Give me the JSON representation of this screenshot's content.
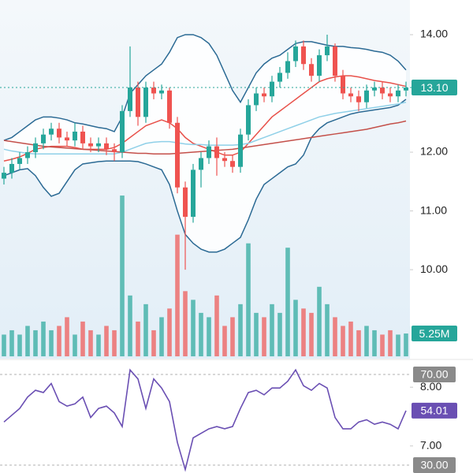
{
  "chart_data": {
    "type": "candlestick",
    "ylim": [
      6.54,
      14.59
    ],
    "yticks": [
      {
        "value": 7,
        "label": "7.00"
      },
      {
        "value": 8,
        "label": "8.00"
      },
      {
        "value": 10,
        "label": "10.00"
      },
      {
        "value": 11,
        "label": "11.00"
      },
      {
        "value": 12,
        "label": "12.00"
      },
      {
        "value": 14,
        "label": "14.00"
      }
    ],
    "grid": false,
    "up_color": "#26a69a",
    "down_color": "#ef5350",
    "open": [
      11.55,
      11.65,
      11.8,
      11.9,
      12.0,
      12.15,
      12.3,
      12.4,
      12.25,
      12.2,
      12.35,
      12.15,
      12.1,
      12.15,
      12.05,
      12.0,
      12.7,
      13.1,
      12.6,
      13.1,
      13.0,
      13.05,
      12.5,
      11.4,
      10.9,
      11.7,
      11.9,
      12.1,
      11.9,
      11.85,
      11.75,
      12.3,
      12.8,
      13.0,
      12.95,
      13.2,
      13.35,
      13.55,
      13.8,
      13.5,
      13.3,
      13.65,
      13.8,
      13.3,
      13.0,
      12.95,
      12.85,
      13.05,
      13.1,
      13.0,
      12.95,
      13.05
    ],
    "high": [
      11.75,
      11.9,
      12.0,
      12.1,
      12.25,
      12.4,
      12.5,
      12.5,
      12.35,
      12.5,
      12.45,
      12.25,
      12.25,
      12.25,
      12.15,
      12.8,
      13.8,
      13.2,
      13.2,
      13.2,
      13.15,
      13.1,
      12.6,
      11.5,
      11.8,
      12.0,
      12.2,
      12.25,
      12.0,
      11.95,
      12.4,
      12.9,
      13.1,
      13.1,
      13.3,
      13.45,
      13.7,
      13.9,
      13.9,
      13.6,
      13.75,
      14.0,
      13.85,
      13.4,
      13.1,
      13.05,
      13.15,
      13.2,
      13.2,
      13.1,
      13.15,
      13.2
    ],
    "low": [
      11.45,
      11.55,
      11.7,
      11.8,
      11.9,
      12.05,
      12.2,
      12.15,
      12.1,
      12.1,
      12.05,
      12.0,
      12.0,
      11.95,
      11.85,
      11.9,
      12.6,
      12.45,
      12.5,
      12.9,
      12.9,
      12.4,
      11.3,
      10.0,
      10.8,
      11.4,
      11.8,
      11.6,
      11.75,
      11.65,
      11.65,
      12.2,
      12.7,
      12.85,
      12.85,
      13.1,
      13.25,
      13.45,
      13.4,
      13.2,
      13.2,
      13.55,
      13.2,
      12.9,
      12.85,
      12.7,
      12.75,
      12.95,
      12.9,
      12.85,
      12.85,
      12.95
    ],
    "close": [
      11.65,
      11.8,
      11.9,
      12.0,
      12.15,
      12.3,
      12.4,
      12.25,
      12.2,
      12.35,
      12.15,
      12.1,
      12.15,
      12.05,
      12.0,
      12.7,
      13.1,
      12.6,
      13.1,
      13.0,
      13.05,
      12.5,
      11.4,
      10.9,
      11.7,
      11.9,
      12.1,
      11.9,
      11.85,
      11.75,
      12.3,
      12.8,
      13.0,
      12.95,
      13.2,
      13.35,
      13.55,
      13.8,
      13.5,
      13.3,
      13.65,
      13.8,
      13.3,
      13.0,
      12.95,
      12.85,
      13.05,
      13.1,
      13.0,
      12.95,
      13.05,
      13.1
    ],
    "close_labels": [
      null,
      null,
      null,
      null,
      null,
      null,
      null,
      null,
      null,
      null,
      null,
      null,
      null,
      null,
      null,
      null,
      null,
      null,
      null,
      null,
      null,
      null,
      null,
      null,
      null,
      null,
      null,
      null,
      null,
      null,
      null,
      null,
      null,
      null,
      null,
      null,
      null,
      null,
      null,
      null,
      null,
      null,
      null,
      null,
      null,
      null,
      null,
      null,
      null,
      null,
      null,
      "13.10"
    ],
    "overlays": [
      {
        "color": "#2b6a94",
        "values": [
          12.2,
          12.25,
          12.35,
          12.45,
          12.55,
          12.6,
          12.6,
          12.58,
          12.55,
          12.5,
          12.48,
          12.45,
          12.42,
          12.4,
          12.35,
          12.6,
          13.0,
          13.15,
          13.3,
          13.4,
          13.5,
          13.7,
          13.95,
          14.0,
          14.0,
          13.95,
          13.85,
          13.65,
          13.35,
          13.05,
          12.85,
          13.1,
          13.35,
          13.5,
          13.6,
          13.65,
          13.75,
          13.85,
          13.88,
          13.88,
          13.85,
          13.82,
          13.8,
          13.8,
          13.78,
          13.77,
          13.75,
          13.72,
          13.7,
          13.65,
          13.55,
          13.4
        ]
      },
      {
        "color": "#2b6a94",
        "values": [
          11.6,
          11.65,
          11.7,
          11.72,
          11.6,
          11.4,
          11.25,
          11.3,
          11.5,
          11.7,
          11.8,
          11.82,
          11.84,
          11.85,
          11.85,
          11.85,
          11.85,
          11.84,
          11.8,
          11.75,
          11.7,
          11.45,
          11.0,
          10.6,
          10.45,
          10.35,
          10.3,
          10.3,
          10.35,
          10.45,
          10.55,
          10.85,
          11.2,
          11.45,
          11.55,
          11.65,
          11.75,
          11.8,
          11.95,
          12.25,
          12.4,
          12.5,
          12.55,
          12.6,
          12.65,
          12.68,
          12.7,
          12.72,
          12.74,
          12.76,
          12.8,
          12.9
        ]
      },
      {
        "color": "#e8514a",
        "values": [
          11.85,
          11.88,
          11.92,
          11.98,
          12.05,
          12.08,
          12.1,
          12.1,
          12.1,
          12.08,
          12.05,
          12.05,
          12.05,
          12.05,
          12.08,
          12.15,
          12.25,
          12.35,
          12.45,
          12.5,
          12.55,
          12.5,
          12.4,
          12.25,
          12.15,
          12.1,
          12.05,
          12.0,
          11.95,
          11.95,
          12.0,
          12.15,
          12.3,
          12.45,
          12.6,
          12.7,
          12.8,
          12.9,
          13.0,
          13.1,
          13.2,
          13.25,
          13.28,
          13.3,
          13.3,
          13.28,
          13.25,
          13.22,
          13.2,
          13.18,
          13.15,
          13.12
        ]
      },
      {
        "color": "#8fd0e8",
        "values": [
          12.05,
          12.02,
          12.0,
          11.98,
          11.97,
          11.97,
          11.97,
          11.97,
          11.97,
          11.97,
          11.97,
          11.97,
          11.97,
          11.97,
          11.97,
          12.0,
          12.05,
          12.1,
          12.15,
          12.17,
          12.18,
          12.18,
          12.16,
          12.14,
          12.13,
          12.13,
          12.12,
          12.12,
          12.12,
          12.12,
          12.13,
          12.15,
          12.2,
          12.25,
          12.3,
          12.35,
          12.4,
          12.45,
          12.5,
          12.55,
          12.6,
          12.63,
          12.66,
          12.68,
          12.7,
          12.72,
          12.74,
          12.76,
          12.78,
          12.8,
          12.82,
          12.85
        ]
      },
      {
        "color": "#c4504a",
        "values": [
          12.2,
          12.18,
          12.16,
          12.14,
          12.12,
          12.1,
          12.09,
          12.08,
          12.07,
          12.06,
          12.05,
          12.04,
          12.03,
          12.02,
          12.01,
          12.0,
          11.99,
          11.98,
          11.98,
          11.97,
          11.97,
          11.97,
          11.98,
          11.99,
          12.0,
          12.01,
          12.02,
          12.03,
          12.04,
          12.05,
          12.07,
          12.09,
          12.11,
          12.13,
          12.15,
          12.17,
          12.19,
          12.21,
          12.23,
          12.25,
          12.27,
          12.29,
          12.31,
          12.33,
          12.35,
          12.37,
          12.39,
          12.42,
          12.45,
          12.48,
          12.5,
          12.53
        ]
      }
    ],
    "volume": {
      "vlim": [
        0,
        82
      ],
      "values": [
        5,
        6,
        5,
        7,
        6,
        8,
        6,
        7,
        9,
        5,
        8,
        6,
        5,
        7,
        6,
        37,
        14,
        8,
        12,
        6,
        9,
        11,
        28,
        15,
        13,
        10,
        9,
        14,
        7,
        9,
        12,
        26,
        10,
        9,
        12,
        10,
        25,
        13,
        11,
        10,
        16,
        12,
        9,
        7,
        8,
        6,
        7,
        6,
        5,
        6,
        5,
        5.25
      ],
      "value_labels": [
        null,
        null,
        null,
        null,
        null,
        null,
        null,
        null,
        null,
        null,
        null,
        null,
        null,
        null,
        null,
        null,
        null,
        null,
        null,
        null,
        null,
        null,
        null,
        null,
        null,
        null,
        null,
        null,
        null,
        null,
        null,
        null,
        null,
        null,
        null,
        null,
        null,
        null,
        null,
        null,
        null,
        null,
        null,
        null,
        null,
        null,
        null,
        null,
        null,
        null,
        null,
        "5.25M"
      ]
    },
    "rsi": {
      "color": "#6a4fb3",
      "ylim": [
        26.5,
        74.5
      ],
      "yticks": [
        {
          "value": 70,
          "label": "70.00"
        },
        {
          "value": 30,
          "label": "30.00"
        }
      ],
      "values": [
        49,
        52,
        55,
        60,
        63,
        62,
        66,
        58,
        56,
        57,
        60,
        51,
        55,
        56,
        53,
        47,
        72,
        68,
        55,
        68,
        64,
        58,
        40,
        28,
        42,
        44,
        46,
        47,
        46,
        47,
        55,
        62,
        63,
        61,
        64,
        64,
        67,
        72,
        65,
        63,
        66,
        64,
        51,
        46,
        46,
        49,
        50,
        48,
        49,
        48,
        46,
        54.01
      ],
      "value_labels": [
        null,
        null,
        null,
        null,
        null,
        null,
        null,
        null,
        null,
        null,
        null,
        null,
        null,
        null,
        null,
        null,
        null,
        null,
        null,
        null,
        null,
        null,
        null,
        null,
        null,
        null,
        null,
        null,
        null,
        null,
        null,
        null,
        null,
        null,
        null,
        null,
        null,
        null,
        null,
        null,
        null,
        null,
        null,
        null,
        null,
        null,
        null,
        null,
        null,
        null,
        null,
        "54.01"
      ]
    }
  }
}
